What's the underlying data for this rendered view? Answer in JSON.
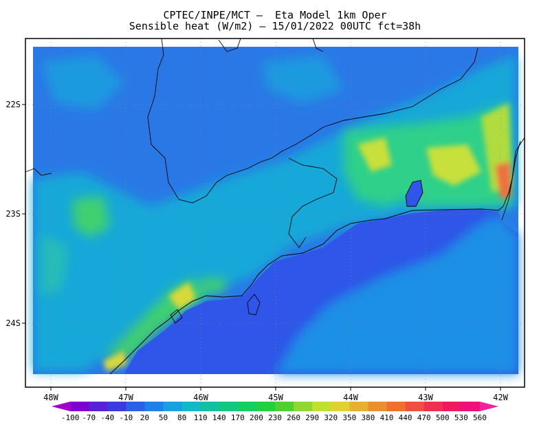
{
  "header": {
    "title_line1": "CPTEC/INPE/MCT –  Eta Model 1km Oper",
    "title_line2": "Sensible heat (W/m2) – 15/01/2022 00UTC fct=38h"
  },
  "map": {
    "longitude_labels": [
      "48W",
      "47W",
      "46W",
      "45W",
      "44W",
      "43W",
      "42W"
    ],
    "latitude_labels": [
      "22S",
      "23S",
      "24S"
    ],
    "colors": {
      "ocean": "#2f56e8",
      "ocean_far": "#1f8fe6",
      "land_cool": "#2a78e6",
      "land_mid": "#15a8d8",
      "land_warm": "#2fd08a",
      "hot": "#c8e03a",
      "hotter": "#f07040"
    }
  },
  "colorbar": {
    "labels": [
      "-100",
      "-70",
      "-40",
      "-10",
      "20",
      "50",
      "80",
      "110",
      "140",
      "170",
      "200",
      "230",
      "260",
      "290",
      "320",
      "350",
      "380",
      "410",
      "440",
      "470",
      "500",
      "530",
      "560"
    ],
    "colors": [
      "#a000c8",
      "#8000d0",
      "#5a20d8",
      "#3a3ae0",
      "#2a60e8",
      "#2080e8",
      "#18a0e0",
      "#10b8c8",
      "#10c0a0",
      "#10c880",
      "#10d060",
      "#20d040",
      "#50d030",
      "#90d830",
      "#c0e030",
      "#e0d030",
      "#e8b030",
      "#e89030",
      "#f07030",
      "#f05040",
      "#f03050",
      "#f01860",
      "#f0107a",
      "#f020a0"
    ]
  }
}
